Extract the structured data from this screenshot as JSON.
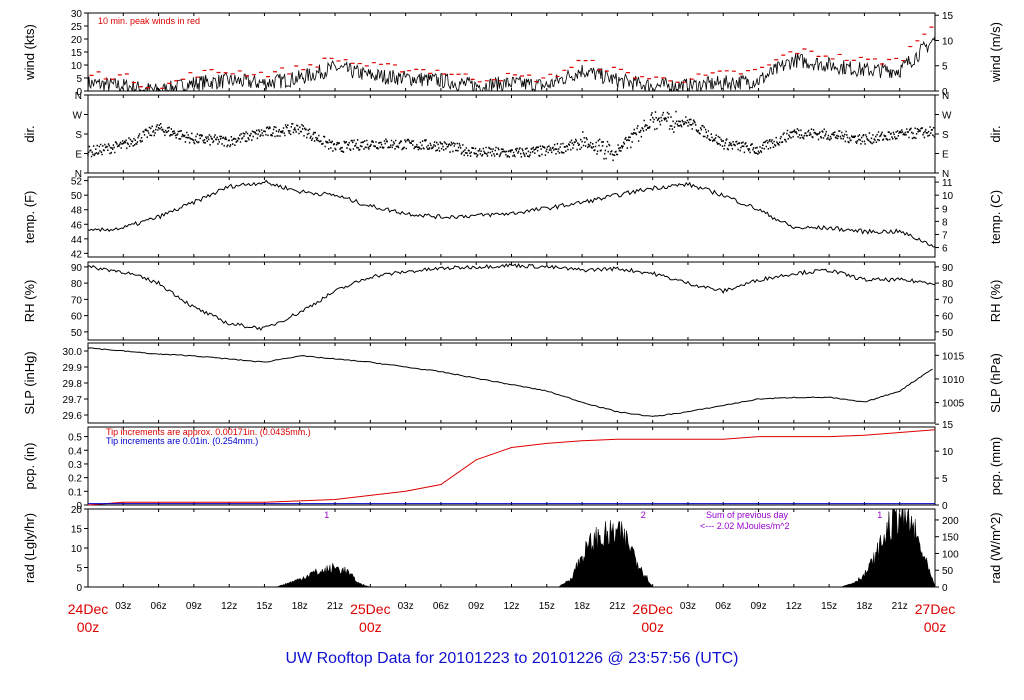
{
  "footer_title": "UW Rooftop Data for 20101223  to  20101226 @ 23:57:56  (UTC)",
  "colors": {
    "red": "#dd0000",
    "blue": "#0000cc",
    "purple": "#9900cc",
    "black": "#000000"
  },
  "chart_data": [
    {
      "type": "line",
      "panel": "wind",
      "ylabel_left": "wind (kts)",
      "ylabel_right": "wind (m/s)",
      "yticks_left": [
        "0",
        "5",
        "10",
        "15",
        "20",
        "25",
        "30"
      ],
      "ylim_left": [
        0,
        30
      ],
      "yticks_right": [
        "0",
        "5",
        "10",
        "15"
      ],
      "ylim_right_values": [
        0,
        5,
        10,
        15
      ],
      "annotation": "10 min. peak winds in red",
      "series": [
        {
          "hours": [
            0,
            3,
            6,
            9,
            12,
            15,
            18,
            21,
            24,
            27,
            30,
            33,
            36,
            39,
            42,
            45,
            48,
            51,
            54,
            57,
            60,
            63,
            66,
            69,
            72
          ],
          "values": [
            3,
            2,
            0,
            3,
            4,
            3,
            5,
            9,
            6,
            5,
            4,
            2,
            3,
            2,
            8,
            4,
            2,
            2,
            3,
            4,
            12,
            10,
            8,
            8,
            20
          ]
        },
        {
          "hours": [
            0,
            3,
            6,
            9,
            12,
            15,
            18,
            21,
            24,
            27,
            30,
            33,
            36,
            39,
            42,
            45,
            48,
            51,
            54,
            57,
            60,
            63,
            66,
            69,
            72
          ],
          "values": [
            6,
            5,
            0,
            6,
            7,
            6,
            8,
            12,
            9,
            8,
            7,
            4,
            5,
            4,
            11,
            7,
            4,
            4,
            6,
            7,
            15,
            13,
            11,
            11,
            27
          ]
        }
      ]
    },
    {
      "type": "scatter",
      "panel": "dir.",
      "ylabel_left": "dir.",
      "ylabel_right": "dir.",
      "yticks_left": [
        "N",
        "E",
        "S",
        "W",
        "N"
      ],
      "yticks_right": [
        "N",
        "E",
        "S",
        "W",
        "N"
      ],
      "ylim_degrees": [
        0,
        360
      ],
      "x_hours": [
        0,
        3,
        6,
        9,
        12,
        15,
        18,
        21,
        24,
        27,
        30,
        33,
        36,
        39,
        42,
        45,
        48,
        51,
        54,
        57,
        60,
        63,
        66,
        69,
        72
      ],
      "y_degrees": [
        100,
        130,
        210,
        160,
        150,
        190,
        210,
        120,
        140,
        135,
        130,
        100,
        95,
        105,
        140,
        100,
        250,
        240,
        140,
        110,
        190,
        180,
        160,
        180,
        195
      ]
    },
    {
      "type": "line",
      "panel": "temp",
      "ylabel_left": "temp. (F)",
      "ylabel_right": "temp. (C)",
      "yticks_left": [
        "42",
        "44",
        "46",
        "48",
        "50",
        "52"
      ],
      "ylim_left": [
        41.5,
        52.5
      ],
      "yticks_right": [
        "6",
        "7",
        "8",
        "9",
        "10",
        "11"
      ],
      "x_hours": [
        0,
        3,
        6,
        9,
        12,
        15,
        18,
        21,
        24,
        27,
        30,
        33,
        36,
        39,
        42,
        45,
        48,
        51,
        54,
        57,
        60,
        63,
        66,
        69,
        72
      ],
      "values": [
        45,
        45.5,
        47,
        49,
        51.2,
        51.8,
        50.5,
        50,
        48.5,
        47.5,
        47,
        47.2,
        47.5,
        48.2,
        49,
        50,
        51,
        51.5,
        50,
        48,
        45.5,
        45.5,
        45,
        45,
        43
      ]
    },
    {
      "type": "line",
      "panel": "RH",
      "ylabel_left": "RH (%)",
      "ylabel_right": "RH (%)",
      "yticks_left": [
        "50",
        "60",
        "70",
        "80",
        "90"
      ],
      "ylim_left": [
        45,
        93
      ],
      "yticks_right": [
        "50",
        "60",
        "70",
        "80",
        "90"
      ],
      "x_hours": [
        0,
        3,
        6,
        9,
        12,
        15,
        18,
        21,
        24,
        27,
        30,
        33,
        36,
        39,
        42,
        45,
        48,
        51,
        54,
        57,
        60,
        63,
        66,
        69,
        72
      ],
      "values": [
        90,
        87,
        80,
        65,
        55,
        52,
        62,
        75,
        84,
        87,
        89,
        90,
        91,
        90,
        88,
        89,
        86,
        80,
        75,
        82,
        86,
        88,
        82,
        82,
        80
      ]
    },
    {
      "type": "line",
      "panel": "SLP",
      "ylabel_left": "SLP (inHg)",
      "ylabel_right": "SLP (hPa)",
      "yticks_left": [
        "29.6",
        "29.7",
        "29.8",
        "29.9",
        "30.0"
      ],
      "ylim_left": [
        29.55,
        30.05
      ],
      "yticks_right": [
        "1005",
        "1010",
        "1015"
      ],
      "x_hours": [
        0,
        3,
        6,
        9,
        12,
        15,
        18,
        21,
        24,
        27,
        30,
        33,
        36,
        39,
        42,
        45,
        48,
        51,
        54,
        57,
        60,
        63,
        66,
        69,
        72
      ],
      "values": [
        30.02,
        30.0,
        29.98,
        29.97,
        29.95,
        29.93,
        29.97,
        29.95,
        29.93,
        29.9,
        29.87,
        29.83,
        29.79,
        29.75,
        29.68,
        29.62,
        29.59,
        29.62,
        29.66,
        29.7,
        29.71,
        29.71,
        29.68,
        29.75,
        29.9
      ]
    },
    {
      "type": "line",
      "panel": "pcp",
      "ylabel_left": "pcp. (in)",
      "ylabel_right": "pcp. (mm)",
      "yticks_left": [
        "0",
        "0.1",
        "0.2",
        "0.3",
        "0.4",
        "0.5"
      ],
      "ylim_left": [
        0,
        0.57
      ],
      "yticks_right": [
        "0",
        "5",
        "10",
        "15"
      ],
      "legend": [
        "Tip increments are approx. 0.00171in. (0.0435mm.)",
        "Tip increments are 0.01in. (0.254mm.)"
      ],
      "series": [
        {
          "hours": [
            0,
            3,
            6,
            9,
            12,
            15,
            18,
            21,
            24,
            27,
            30,
            33,
            36,
            39,
            42,
            45,
            48,
            51,
            54,
            57,
            60,
            63,
            66,
            69,
            72
          ],
          "values": [
            0,
            0.02,
            0.02,
            0.02,
            0.02,
            0.02,
            0.03,
            0.04,
            0.07,
            0.1,
            0.15,
            0.33,
            0.42,
            0.45,
            0.47,
            0.48,
            0.48,
            0.48,
            0.48,
            0.5,
            0.5,
            0.5,
            0.51,
            0.53,
            0.55
          ]
        },
        {
          "hours": [
            0,
            72
          ],
          "values": [
            0.01,
            0.01
          ]
        }
      ]
    },
    {
      "type": "area",
      "panel": "rad",
      "ylabel_left": "rad (Lgly/hr)",
      "ylabel_right": "rad (W/m^2)",
      "yticks_left": [
        "0",
        "5",
        "10",
        "15",
        "20"
      ],
      "ylim_left": [
        0,
        20
      ],
      "yticks_right": [
        "0",
        "50",
        "100",
        "150",
        "200"
      ],
      "note_title": "Sum of previous day",
      "note_value": "<--- 2.02 MJoules/m^2",
      "day_markers": [
        "1",
        "2",
        "1"
      ],
      "x_hours": [
        0,
        16,
        17,
        18,
        19,
        20,
        21,
        22,
        23,
        24,
        40,
        41,
        42,
        43,
        44,
        45,
        46,
        47,
        48,
        64,
        65,
        66,
        67,
        68,
        69,
        70,
        71,
        72
      ],
      "values": [
        0,
        0,
        1,
        2,
        3.5,
        4,
        5,
        4,
        1,
        0,
        0,
        2,
        8,
        12,
        13,
        14,
        11,
        5,
        0,
        0,
        1,
        3,
        8,
        15,
        19,
        16,
        8,
        0
      ]
    }
  ],
  "x_axis": {
    "hour_ticks": [
      "03z",
      "06z",
      "09z",
      "12z",
      "15z",
      "18z",
      "21z",
      "03z",
      "06z",
      "09z",
      "12z",
      "15z",
      "18z",
      "21z",
      "03z",
      "06z",
      "09z",
      "12z",
      "15z",
      "18z",
      "21z"
    ],
    "day_labels": [
      {
        "day": "24Dec",
        "time": "00z"
      },
      {
        "day": "25Dec",
        "time": "00z"
      },
      {
        "day": "26Dec",
        "time": "00z"
      },
      {
        "day": "27Dec",
        "time": "00z"
      }
    ]
  }
}
